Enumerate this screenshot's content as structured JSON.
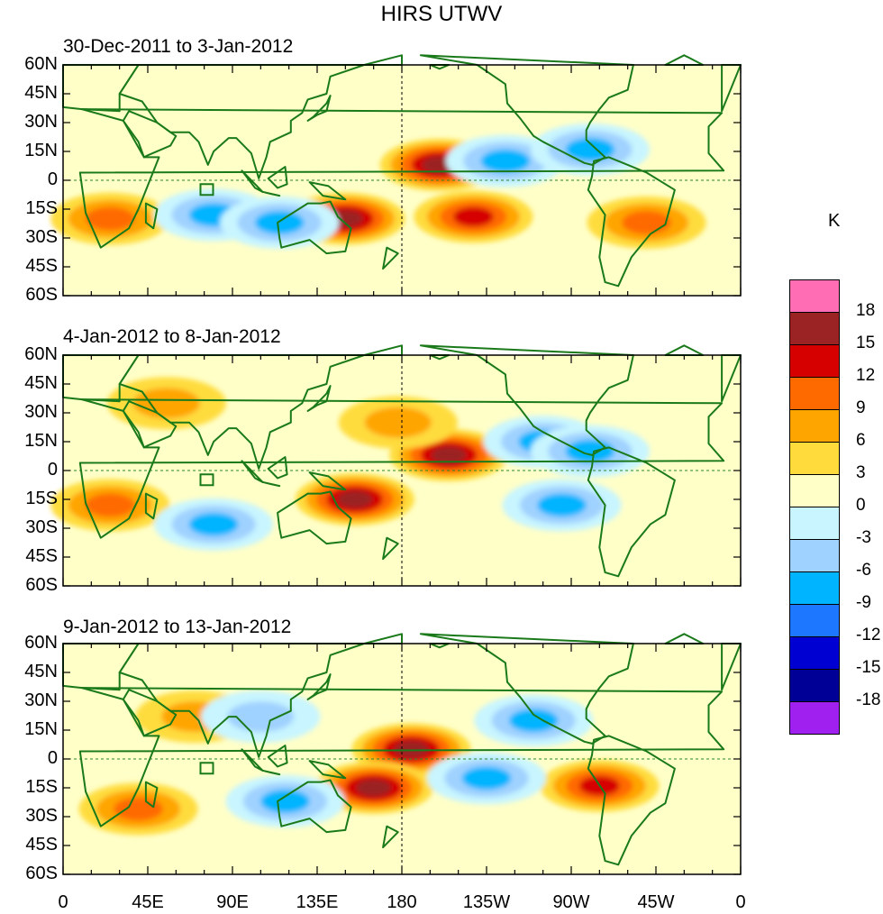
{
  "title": "HIRS UTWV",
  "chart_data": [
    {
      "type": "heatmap",
      "title": "30-Dec-2011 to 3-Jan-2012",
      "xlabel": "",
      "ylabel": "",
      "xlim": [
        0,
        360
      ],
      "ylim": [
        -60,
        60
      ],
      "x_ticks": [
        "0",
        "45E",
        "90E",
        "135E",
        "180",
        "135W",
        "90W",
        "45W",
        "0"
      ],
      "y_ticks": [
        "60N",
        "45N",
        "30N",
        "15N",
        "0",
        "15S",
        "30S",
        "45S",
        "60S"
      ],
      "anomalies": [
        {
          "lon": 200,
          "lat": 8,
          "value": 15
        },
        {
          "lon": 150,
          "lat": -20,
          "value": 15
        },
        {
          "lon": 218,
          "lat": -19,
          "value": 12
        },
        {
          "lon": 310,
          "lat": -22,
          "value": 9
        },
        {
          "lon": 25,
          "lat": -20,
          "value": 9
        },
        {
          "lon": 235,
          "lat": 10,
          "value": -9
        },
        {
          "lon": 80,
          "lat": -18,
          "value": -9
        },
        {
          "lon": 115,
          "lat": -22,
          "value": -9
        },
        {
          "lon": 280,
          "lat": 16,
          "value": -9
        }
      ]
    },
    {
      "type": "heatmap",
      "title": "4-Jan-2012 to 8-Jan-2012",
      "xlabel": "",
      "ylabel": "",
      "xlim": [
        0,
        360
      ],
      "ylim": [
        -60,
        60
      ],
      "x_ticks": [
        "0",
        "45E",
        "90E",
        "135E",
        "180",
        "135W",
        "90W",
        "45W",
        "0"
      ],
      "y_ticks": [
        "60N",
        "45N",
        "30N",
        "15N",
        "0",
        "15S",
        "30S",
        "45S",
        "60S"
      ],
      "anomalies": [
        {
          "lon": 155,
          "lat": -15,
          "value": 15
        },
        {
          "lon": 205,
          "lat": 8,
          "value": 15
        },
        {
          "lon": 25,
          "lat": -18,
          "value": 9
        },
        {
          "lon": 55,
          "lat": 35,
          "value": 6
        },
        {
          "lon": 178,
          "lat": 25,
          "value": 6
        },
        {
          "lon": 255,
          "lat": 15,
          "value": -9
        },
        {
          "lon": 80,
          "lat": -28,
          "value": -9
        },
        {
          "lon": 265,
          "lat": -18,
          "value": -9
        },
        {
          "lon": 280,
          "lat": 10,
          "value": -9
        }
      ]
    },
    {
      "type": "heatmap",
      "title": "9-Jan-2012 to 13-Jan-2012",
      "xlabel": "",
      "ylabel": "",
      "xlim": [
        0,
        360
      ],
      "ylim": [
        -60,
        60
      ],
      "x_ticks": [
        "0",
        "45E",
        "90E",
        "135E",
        "180",
        "135W",
        "90W",
        "45W",
        "0"
      ],
      "y_ticks": [
        "60N",
        "45N",
        "30N",
        "15N",
        "0",
        "15S",
        "30S",
        "45S",
        "60S"
      ],
      "anomalies": [
        {
          "lon": 185,
          "lat": 5,
          "value": 15
        },
        {
          "lon": 165,
          "lat": -15,
          "value": 15
        },
        {
          "lon": 285,
          "lat": -14,
          "value": 12
        },
        {
          "lon": 40,
          "lat": -26,
          "value": 9
        },
        {
          "lon": 70,
          "lat": 22,
          "value": 6
        },
        {
          "lon": 118,
          "lat": -22,
          "value": -9
        },
        {
          "lon": 250,
          "lat": 20,
          "value": -9
        },
        {
          "lon": 225,
          "lat": -10,
          "value": -9
        },
        {
          "lon": 105,
          "lat": 22,
          "value": -6
        }
      ]
    }
  ],
  "colorbar": {
    "unit": "K",
    "colors": [
      "#ff6eb4",
      "#9b2323",
      "#d60000",
      "#ff6a00",
      "#ffa500",
      "#ffdc3c",
      "#ffffc8",
      "#c8f5ff",
      "#a0d2ff",
      "#00b4ff",
      "#1e78ff",
      "#0000d2",
      "#000096",
      "#a020f0"
    ],
    "labels": [
      "18",
      "15",
      "12",
      "9",
      "6",
      "3",
      "0",
      "-3",
      "-6",
      "-9",
      "-12",
      "-15",
      "-18"
    ]
  }
}
